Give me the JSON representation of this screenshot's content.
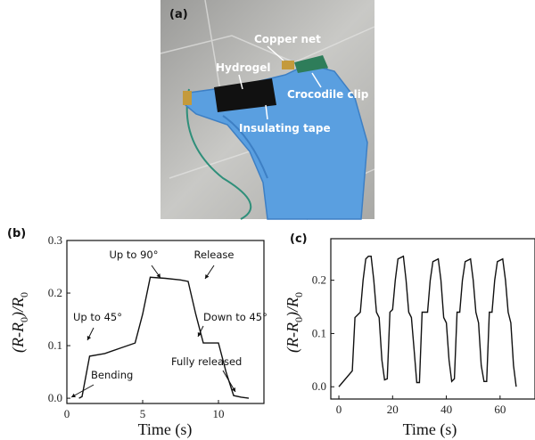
{
  "photo": {
    "panel_label": "(a)",
    "labels": [
      "Copper net",
      "Hydrogel",
      "Crocodile clip",
      "Insulating tape"
    ]
  },
  "chart_data": [
    {
      "type": "line",
      "panel_label": "(b)",
      "xlabel": "Time (s)",
      "ylabel_parts": [
        "(R-R",
        "0",
        ")/R",
        "0"
      ],
      "x": [
        0.8,
        1,
        1.5,
        2.5,
        3.5,
        4.5,
        5,
        5.5,
        6.5,
        7.5,
        8,
        8.5,
        9,
        10,
        10.5,
        11,
        11.5,
        12
      ],
      "values": [
        0.0,
        0.003,
        0.08,
        0.085,
        0.095,
        0.105,
        0.16,
        0.23,
        0.228,
        0.225,
        0.222,
        0.16,
        0.105,
        0.105,
        0.05,
        0.005,
        0.002,
        0.0
      ],
      "color": "#111111",
      "xlim": [
        0,
        13
      ],
      "ylim": [
        -0.01,
        0.3
      ],
      "xticks": [
        0,
        5,
        10
      ],
      "yticks": [
        {
          "value": 0,
          "label": "0.0"
        },
        0.1,
        0.2,
        0.3
      ],
      "annotations": [
        "Up to 90°",
        "Release",
        "Up to 45°",
        "Down to 45°",
        "Bending",
        "Fully released"
      ]
    },
    {
      "type": "line",
      "panel_label": "(c)",
      "xlabel": "Time (s)",
      "ylabel_parts": [
        "(R-R",
        "0",
        ")/R",
        "0"
      ],
      "x": [
        0,
        5,
        6,
        8,
        9,
        10,
        11,
        12,
        13,
        14,
        15,
        16,
        17,
        18,
        19,
        20,
        21,
        22,
        24,
        25,
        26,
        27,
        28,
        29,
        30,
        31,
        33,
        34,
        35,
        37,
        38,
        39,
        40,
        41,
        42,
        43,
        44,
        45,
        46,
        47,
        49,
        50,
        51,
        52,
        53,
        54,
        55,
        56,
        57,
        58,
        59,
        61,
        62,
        63,
        64,
        65,
        66
      ],
      "values": [
        0,
        0.03,
        0.13,
        0.14,
        0.2,
        0.24,
        0.245,
        0.245,
        0.2,
        0.14,
        0.13,
        0.05,
        0.013,
        0.015,
        0.14,
        0.145,
        0.2,
        0.24,
        0.245,
        0.2,
        0.14,
        0.13,
        0.07,
        0.008,
        0.008,
        0.14,
        0.14,
        0.2,
        0.235,
        0.24,
        0.2,
        0.13,
        0.12,
        0.05,
        0.01,
        0.015,
        0.14,
        0.14,
        0.2,
        0.235,
        0.24,
        0.2,
        0.14,
        0.12,
        0.04,
        0.01,
        0.01,
        0.14,
        0.14,
        0.2,
        0.235,
        0.24,
        0.2,
        0.14,
        0.12,
        0.04,
        0.0
      ],
      "color": "#111111",
      "xlim": [
        -3,
        73
      ],
      "ylim": [
        -0.023,
        0.278
      ],
      "xticks": [
        0,
        20,
        40,
        60
      ],
      "yticks": [
        {
          "value": 0,
          "label": "0.0"
        },
        0.1,
        0.2
      ]
    }
  ]
}
